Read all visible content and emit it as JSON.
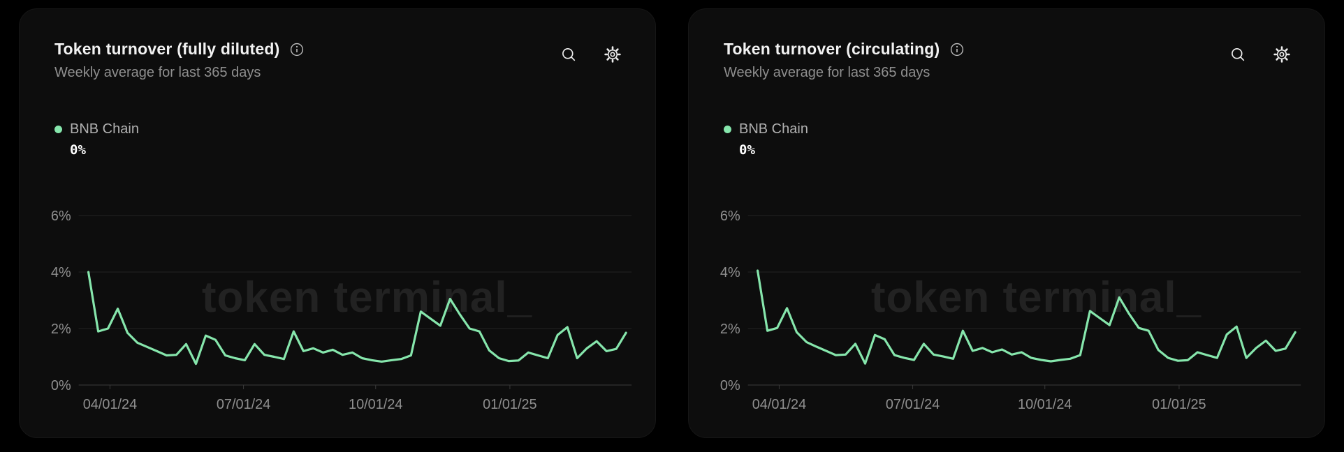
{
  "colors": {
    "page_bg": "#000000",
    "card_bg": "#0d0d0d",
    "grid": "#232323",
    "axis": "#3a3a3a",
    "tick_text": "#8f8f8f",
    "line_green": "#86E6AC",
    "watermark": "#222222"
  },
  "cards": [
    {
      "title": "Token turnover (fully diluted)",
      "subtitle": "Weekly average for last 365 days",
      "legend": {
        "name": "BNB Chain",
        "value": "0%",
        "color": "#86E6AC"
      },
      "watermark": "token terminal_",
      "chart_data": {
        "type": "line",
        "title": "Token turnover (fully diluted)",
        "subtitle": "Weekly average for last 365 days",
        "x_tick_labels": [
          "04/01/24",
          "07/01/24",
          "10/01/24",
          "01/01/25"
        ],
        "y_tick_labels": [
          "0%",
          "2%",
          "4%",
          "6%"
        ],
        "ylim": [
          0,
          6.5
        ],
        "grid": "horizontal",
        "legend_position": "top-left",
        "series": [
          {
            "name": "BNB Chain",
            "unit": "percent",
            "values": [
              4.0,
              1.9,
              2.0,
              2.7,
              1.85,
              1.5,
              1.35,
              1.2,
              1.05,
              1.07,
              1.45,
              0.75,
              1.75,
              1.6,
              1.05,
              0.95,
              0.88,
              1.45,
              1.07,
              1.0,
              0.92,
              1.9,
              1.2,
              1.3,
              1.15,
              1.25,
              1.07,
              1.15,
              0.95,
              0.88,
              0.83,
              0.88,
              0.92,
              1.05,
              2.6,
              2.35,
              2.1,
              3.05,
              2.5,
              2.0,
              1.9,
              1.23,
              0.95,
              0.85,
              0.87,
              1.15,
              1.05,
              0.95,
              1.77,
              2.05,
              0.95,
              1.3,
              1.55,
              1.2,
              1.28,
              1.85
            ]
          }
        ]
      }
    },
    {
      "title": "Token turnover (circulating)",
      "subtitle": "Weekly average for last 365 days",
      "legend": {
        "name": "BNB Chain",
        "value": "0%",
        "color": "#86E6AC"
      },
      "watermark": "token terminal_",
      "chart_data": {
        "type": "line",
        "title": "Token turnover (circulating)",
        "subtitle": "Weekly average for last 365 days",
        "x_tick_labels": [
          "04/01/24",
          "07/01/24",
          "10/01/24",
          "01/01/25"
        ],
        "y_tick_labels": [
          "0%",
          "2%",
          "4%",
          "6%"
        ],
        "ylim": [
          0,
          6.5
        ],
        "grid": "horizontal",
        "legend_position": "top-left",
        "series": [
          {
            "name": "BNB Chain",
            "unit": "percent",
            "values": [
              4.05,
              1.92,
              2.02,
              2.72,
              1.87,
              1.52,
              1.36,
              1.21,
              1.06,
              1.08,
              1.46,
              0.76,
              1.77,
              1.62,
              1.06,
              0.96,
              0.89,
              1.46,
              1.08,
              1.01,
              0.93,
              1.92,
              1.21,
              1.31,
              1.16,
              1.26,
              1.08,
              1.16,
              0.96,
              0.89,
              0.84,
              0.89,
              0.93,
              1.06,
              2.62,
              2.37,
              2.12,
              3.1,
              2.52,
              2.02,
              1.92,
              1.24,
              0.96,
              0.86,
              0.88,
              1.16,
              1.06,
              0.96,
              1.79,
              2.07,
              0.96,
              1.31,
              1.57,
              1.21,
              1.29,
              1.87
            ]
          }
        ]
      }
    }
  ]
}
